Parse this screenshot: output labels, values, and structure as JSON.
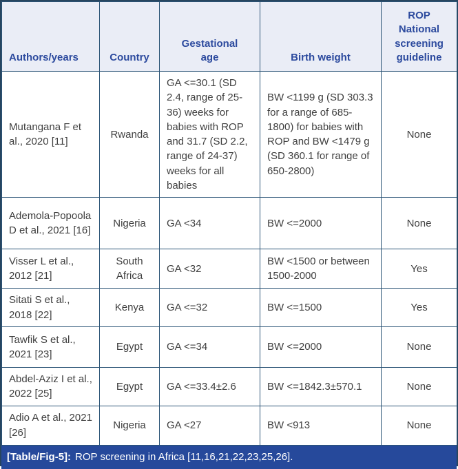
{
  "colors": {
    "header_background": "#eaedf6",
    "header_text": "#2c4a9e",
    "grid_line": "#2b5476",
    "body_text": "#3f3f3f",
    "caption_background": "#26499b",
    "caption_text": "#ffffff"
  },
  "table": {
    "columns": [
      "Authors/years",
      "Country",
      "Gestational age",
      "Birth weight",
      "ROP National screening guideline"
    ],
    "rows": [
      {
        "authors": "Mutangana F et al., 2020 [11]",
        "country": "Rwanda",
        "gestational_age": "GA <=30.1 (SD 2.4, range of 25-36) weeks for babies with ROP and 31.7 (SD 2.2, range of 24-37) weeks for all babies",
        "birth_weight": "BW <1199 g (SD 303.3 for a range of 685-1800) for babies with ROP and BW <1479 g (SD 360.1 for range of 650-2800)",
        "guideline": "None"
      },
      {
        "authors": "Ademola-Popoola D et al., 2021 [16]",
        "country": "Nigeria",
        "gestational_age": "GA <34",
        "birth_weight": "BW <=2000",
        "guideline": "None"
      },
      {
        "authors": "Visser L et al., 2012 [21]",
        "country": "South Africa",
        "gestational_age": "GA <32",
        "birth_weight": "BW <1500 or between 1500-2000",
        "guideline": "Yes"
      },
      {
        "authors": "Sitati S et al., 2018 [22]",
        "country": "Kenya",
        "gestational_age": "GA <=32",
        "birth_weight": "BW <=1500",
        "guideline": "Yes"
      },
      {
        "authors": "Tawfik S et al., 2021 [23]",
        "country": "Egypt",
        "gestational_age": "GA <=34",
        "birth_weight": "BW <=2000",
        "guideline": "None"
      },
      {
        "authors": "Abdel-Aziz I et al., 2022 [25]",
        "country": "Egypt",
        "gestational_age": "GA <=33.4±2.6",
        "birth_weight": "BW <=1842.3±570.1",
        "guideline": "None"
      },
      {
        "authors": "Adio A et al., 2021 [26]",
        "country": "Nigeria",
        "gestational_age": "GA <27",
        "birth_weight": "BW <913",
        "guideline": "None"
      }
    ],
    "caption": {
      "label": "[Table/Fig-5]:",
      "text": "ROP screening in Africa [11,16,21,22,23,25,26]."
    }
  }
}
